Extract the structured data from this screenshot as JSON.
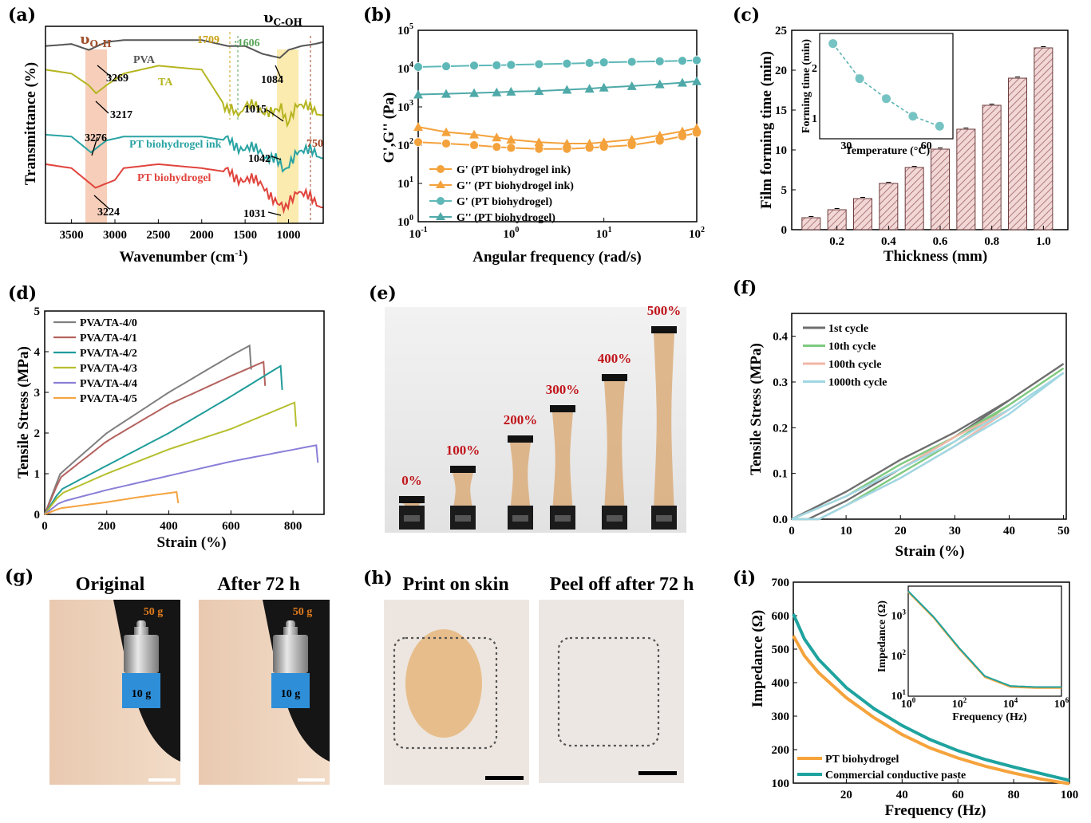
{
  "panels": {
    "a": {
      "label": "(a)",
      "xlabel": "Wavenumber (cm",
      "xlabel_sup": "-1",
      "xlabel_end": ")",
      "ylabel": "Transmittance (%)",
      "xticks": [
        "3500",
        "3000",
        "2500",
        "2000",
        "1500",
        "1000"
      ],
      "band_oh": "υ",
      "band_oh_sub": "O-H",
      "band_coh": "υ",
      "band_coh_sub": "C-OH",
      "series_labels": [
        "PVA",
        "TA",
        "PT biohydrogel ink",
        "PT biohydrogel"
      ],
      "peaks": [
        "3269",
        "3217",
        "3276",
        "3224",
        "1709",
        ":1606",
        "1084",
        "1015",
        "1042",
        "1031",
        "750"
      ],
      "colors": {
        "PVA": "#555555",
        "TA": "#b5b521",
        "ink": "#2aa3a3",
        "gel": "#e0443d"
      }
    },
    "b": {
      "label": "(b)",
      "xlabel": "Angular frequency (rad/s)",
      "ylabel": "G',G'' (Pa)",
      "yticks": [
        "10",
        "10",
        "10",
        "10",
        "10",
        "10"
      ],
      "ytick_exp": [
        "0",
        "1",
        "2",
        "3",
        "4",
        "5"
      ],
      "xticks": [
        "10",
        "10",
        "10",
        "10"
      ],
      "xtick_exp": [
        "-1",
        "0",
        "1",
        "2"
      ],
      "legend": [
        "G' (PT biohydrogel ink)",
        "G'' (PT biohydrogel ink)",
        "G' (PT biohydrogel)",
        "G'' (PT biohydrogel)"
      ]
    },
    "c": {
      "label": "(c)",
      "xlabel": "Thickness (mm)",
      "ylabel": "Film forming time (min)",
      "xticks": [
        "0.2",
        "0.4",
        "0.6",
        "0.8",
        "1.0"
      ],
      "yticks": [
        "0",
        "5",
        "10",
        "15",
        "20",
        "25"
      ],
      "inset_xlabel": "Temperature (°C)",
      "inset_ylabel": "Forming time (min)",
      "inset_xticks": [
        "30",
        "60"
      ],
      "inset_yticks": [
        "1",
        "2"
      ]
    },
    "d": {
      "label": "(d)",
      "xlabel": "Strain (%)",
      "ylabel": "Tensile Stress (MPa)",
      "xticks": [
        "0",
        "200",
        "400",
        "600",
        "800"
      ],
      "yticks": [
        "0",
        "1",
        "2",
        "3",
        "4",
        "5"
      ],
      "legend": [
        "PVA/TA-4/0",
        "PVA/TA-4/1",
        "PVA/TA-4/2",
        "PVA/TA-4/3",
        "PVA/TA-4/4",
        "PVA/TA-4/5"
      ]
    },
    "e": {
      "label": "(e)",
      "strains": [
        "0%",
        "100%",
        "200%",
        "300%",
        "400%",
        "500%"
      ]
    },
    "f": {
      "label": "(f)",
      "xlabel": "Strain (%)",
      "ylabel": "Tensile Stress (MPa)",
      "xticks": [
        "0",
        "10",
        "20",
        "30",
        "40",
        "50"
      ],
      "yticks": [
        "0.0",
        "0.1",
        "0.2",
        "0.3",
        "0.4"
      ],
      "legend": [
        "1st cycle",
        "10th cycle",
        "100th cycle",
        "1000th cycle"
      ]
    },
    "g": {
      "label": "(g)",
      "left_title": "Original",
      "right_title": "After 72 h",
      "weight_top": "50 g",
      "weight_bottom": "10 g"
    },
    "h": {
      "label": "(h)",
      "left_title": "Print on skin",
      "right_title": "Peel off after 72 h"
    },
    "i": {
      "label": "(i)",
      "xlabel": "Frequency (Hz)",
      "ylabel": "Impedance (Ω)",
      "xticks": [
        "20",
        "40",
        "60",
        "80",
        "100"
      ],
      "yticks": [
        "100",
        "200",
        "300",
        "400",
        "500",
        "600",
        "700"
      ],
      "legend": [
        "PT biohydrogel",
        "Commercial conductive paste"
      ],
      "inset_xlabel": "Frequency (Hz)",
      "inset_ylabel": "Impedance (Ω)",
      "inset_xticks": [
        "10",
        "10",
        "10",
        "10"
      ],
      "inset_xtick_exp": [
        "0",
        "2",
        "4",
        "6"
      ],
      "inset_yticks": [
        "10",
        "10",
        "10"
      ],
      "inset_ytick_exp": [
        "1",
        "2",
        "3"
      ]
    }
  },
  "chart_data": [
    {
      "type": "line",
      "panel": "a",
      "xlabel": "Wavenumber (cm-1)",
      "ylabel": "Transmittance (%)",
      "xlim": [
        3800,
        600
      ],
      "series": [
        {
          "name": "PVA",
          "x": [
            3800,
            3500,
            3300,
            3100,
            2900,
            2500,
            2000,
            1700,
            1500,
            1300,
            1100,
            1000,
            850,
            700,
            600
          ],
          "y": [
            0.9,
            0.91,
            0.88,
            0.92,
            0.93,
            0.93,
            0.93,
            0.9,
            0.9,
            0.86,
            0.84,
            0.88,
            0.9,
            0.91,
            0.92
          ]
        },
        {
          "name": "TA",
          "x": [
            3800,
            3500,
            3300,
            3217,
            3100,
            2900,
            2500,
            2000,
            1709,
            1606,
            1500,
            1300,
            1084,
            1015,
            900,
            700,
            600
          ],
          "y": [
            0.78,
            0.76,
            0.7,
            0.66,
            0.7,
            0.76,
            0.8,
            0.78,
            0.58,
            0.55,
            0.6,
            0.57,
            0.6,
            0.52,
            0.62,
            0.56,
            0.55
          ]
        },
        {
          "name": "PT biohydrogel ink",
          "x": [
            3800,
            3500,
            3276,
            3100,
            2900,
            2500,
            2000,
            1700,
            1500,
            1300,
            1042,
            900,
            700,
            600
          ],
          "y": [
            0.45,
            0.44,
            0.36,
            0.42,
            0.44,
            0.44,
            0.44,
            0.42,
            0.38,
            0.36,
            0.28,
            0.38,
            0.35,
            0.33
          ]
        },
        {
          "name": "PT biohydrogel",
          "x": [
            3800,
            3500,
            3224,
            3000,
            2900,
            2500,
            2000,
            1700,
            1500,
            1300,
            1031,
            900,
            700,
            600
          ],
          "y": [
            0.3,
            0.28,
            0.18,
            0.22,
            0.28,
            0.3,
            0.28,
            0.26,
            0.22,
            0.2,
            0.06,
            0.18,
            0.1,
            0.08
          ]
        }
      ]
    },
    {
      "type": "line",
      "panel": "b",
      "xlabel": "Angular frequency (rad/s)",
      "ylabel": "G',G'' (Pa)",
      "xscale": "log",
      "yscale": "log",
      "xlim": [
        0.1,
        100
      ],
      "ylim": [
        1,
        100000
      ],
      "x": [
        0.1,
        0.2,
        0.4,
        0.7,
        1,
        2,
        4,
        7,
        10,
        20,
        40,
        70,
        100
      ],
      "series": [
        {
          "name": "G' (PT biohydrogel ink)",
          "values": [
            120,
            110,
            100,
            90,
            85,
            80,
            80,
            85,
            90,
            100,
            130,
            170,
            210
          ]
        },
        {
          "name": "G'' (PT biohydrogel ink)",
          "values": [
            300,
            220,
            190,
            160,
            140,
            120,
            110,
            110,
            120,
            140,
            180,
            230,
            280
          ]
        },
        {
          "name": "G' (PT biohydrogel)",
          "values": [
            11000,
            11500,
            12000,
            12200,
            12500,
            13000,
            13500,
            14000,
            14500,
            15000,
            15500,
            16000,
            16500
          ]
        },
        {
          "name": "G'' (PT biohydrogel)",
          "values": [
            2100,
            2200,
            2300,
            2400,
            2500,
            2600,
            2800,
            3000,
            3200,
            3500,
            3900,
            4300,
            4700
          ]
        }
      ]
    },
    {
      "type": "bar",
      "panel": "c",
      "xlabel": "Thickness (mm)",
      "ylabel": "Film forming time (min)",
      "x": [
        0.1,
        0.2,
        0.3,
        0.4,
        0.5,
        0.6,
        0.7,
        0.8,
        0.9,
        1.0
      ],
      "values": [
        1.5,
        2.5,
        3.9,
        5.8,
        7.8,
        10.1,
        12.6,
        15.6,
        19.0,
        22.8
      ],
      "ylim": [
        0,
        25
      ],
      "inset": {
        "type": "line",
        "xlabel": "Temperature (°C)",
        "ylabel": "Forming time (min)",
        "x": [
          25,
          35,
          45,
          55,
          65
        ],
        "values": [
          2.5,
          1.8,
          1.4,
          1.05,
          0.85
        ]
      }
    },
    {
      "type": "line",
      "panel": "d",
      "xlabel": "Strain (%)",
      "ylabel": "Tensile Stress (MPa)",
      "xlim": [
        0,
        900
      ],
      "ylim": [
        0,
        5
      ],
      "series": [
        {
          "name": "PVA/TA-4/0",
          "x": [
            0,
            50,
            200,
            400,
            600,
            660
          ],
          "y": [
            0,
            1.0,
            2.0,
            3.0,
            3.9,
            4.15
          ]
        },
        {
          "name": "PVA/TA-4/1",
          "x": [
            0,
            50,
            200,
            400,
            600,
            705
          ],
          "y": [
            0,
            0.9,
            1.8,
            2.7,
            3.4,
            3.75
          ]
        },
        {
          "name": "PVA/TA-4/2",
          "x": [
            0,
            50,
            200,
            400,
            600,
            760
          ],
          "y": [
            0,
            0.6,
            1.2,
            2.0,
            2.9,
            3.65
          ]
        },
        {
          "name": "PVA/TA-4/3",
          "x": [
            0,
            50,
            200,
            400,
            600,
            805
          ],
          "y": [
            0,
            0.5,
            1.0,
            1.6,
            2.1,
            2.75
          ]
        },
        {
          "name": "PVA/TA-4/4",
          "x": [
            0,
            50,
            200,
            400,
            600,
            875
          ],
          "y": [
            0,
            0.3,
            0.6,
            0.95,
            1.3,
            1.7
          ]
        },
        {
          "name": "PVA/TA-4/5",
          "x": [
            0,
            50,
            200,
            300,
            425
          ],
          "y": [
            0,
            0.15,
            0.3,
            0.42,
            0.55
          ]
        }
      ]
    },
    {
      "type": "line",
      "panel": "f",
      "xlabel": "Strain (%)",
      "ylabel": "Tensile Stress (MPa)",
      "xlim": [
        0,
        50
      ],
      "ylim": [
        0,
        0.45
      ],
      "series": [
        {
          "name": "1st cycle",
          "x": [
            0,
            10,
            20,
            30,
            40,
            50,
            40,
            30,
            20,
            10,
            3,
            0
          ],
          "y": [
            0,
            0.06,
            0.13,
            0.19,
            0.26,
            0.34,
            0.26,
            0.18,
            0.11,
            0.04,
            0,
            0
          ]
        },
        {
          "name": "10th cycle",
          "x": [
            0,
            10,
            20,
            30,
            40,
            50,
            40,
            30,
            20,
            10,
            5,
            0
          ],
          "y": [
            0,
            0.05,
            0.12,
            0.18,
            0.25,
            0.33,
            0.25,
            0.17,
            0.1,
            0.03,
            0,
            0
          ]
        },
        {
          "name": "100th cycle",
          "x": [
            0,
            10,
            20,
            30,
            40,
            50,
            40,
            30,
            20,
            10,
            5,
            0
          ],
          "y": [
            0,
            0.05,
            0.11,
            0.18,
            0.24,
            0.32,
            0.24,
            0.16,
            0.09,
            0.03,
            0,
            0
          ]
        },
        {
          "name": "1000th cycle",
          "x": [
            0,
            10,
            20,
            30,
            40,
            50,
            40,
            30,
            20,
            10,
            5,
            0
          ],
          "y": [
            0,
            0.05,
            0.11,
            0.17,
            0.24,
            0.32,
            0.23,
            0.16,
            0.09,
            0.03,
            0,
            0
          ]
        }
      ]
    },
    {
      "type": "line",
      "panel": "i",
      "xlabel": "Frequency (Hz)",
      "ylabel": "Impedance (Ω)",
      "xlim": [
        1,
        100
      ],
      "ylim": [
        100,
        700
      ],
      "x": [
        1,
        5,
        10,
        20,
        30,
        40,
        50,
        60,
        70,
        80,
        90,
        100
      ],
      "series": [
        {
          "name": "PT biohydrogel",
          "values": [
            540,
            480,
            430,
            355,
            295,
            245,
            205,
            175,
            150,
            130,
            112,
            98
          ]
        },
        {
          "name": "Commercial conductive paste",
          "values": [
            605,
            530,
            470,
            385,
            322,
            272,
            230,
            197,
            170,
            148,
            128,
            108
          ]
        }
      ],
      "inset": {
        "type": "line",
        "xscale": "log",
        "yscale": "log",
        "xlabel": "Frequency (Hz)",
        "ylabel": "Impedance (Ω)",
        "x": [
          1,
          10,
          100,
          1000,
          10000,
          100000,
          1000000
        ],
        "values": [
          4000,
          900,
          150,
          30,
          17,
          16,
          16
        ]
      }
    }
  ]
}
